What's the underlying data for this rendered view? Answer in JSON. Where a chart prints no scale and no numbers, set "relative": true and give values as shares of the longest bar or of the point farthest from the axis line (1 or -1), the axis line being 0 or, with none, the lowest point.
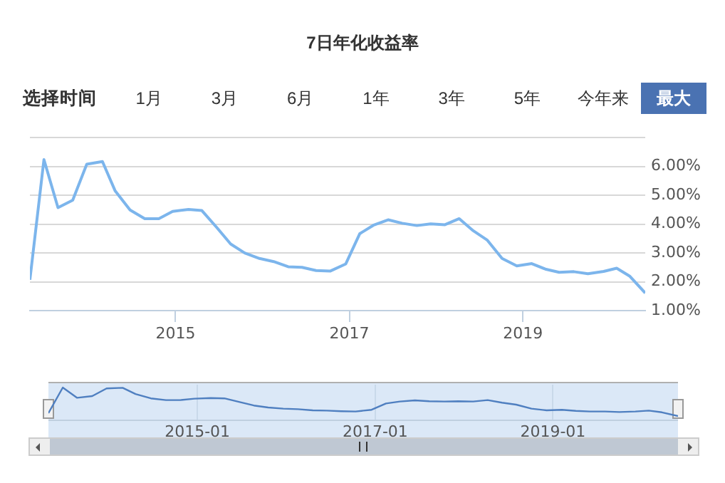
{
  "chart_data": [
    {
      "type": "line",
      "title": "7日年化收益率",
      "annotations": [
        "选择时间",
        "1月",
        "3月",
        "6月",
        "1年",
        "3年",
        "5年",
        "今年来",
        "最大"
      ],
      "x": [
        "2013-04-29",
        "2013-06-27",
        "2013-08-25",
        "2013-10-26",
        "2013-12-24",
        "2014-02-28",
        "2014-04-22",
        "2014-06-24",
        "2014-08-25",
        "2014-10-23",
        "2014-12-20",
        "2015-02-25",
        "2015-04-22",
        "2015-06-24",
        "2015-08-21",
        "2015-10-19",
        "2015-12-20",
        "2016-02-18",
        "2016-04-19",
        "2016-06-16",
        "2016-08-14",
        "2016-10-12",
        "2016-12-17",
        "2017-02-14",
        "2017-04-12",
        "2017-06-13",
        "2017-08-11",
        "2017-10-12",
        "2017-12-09",
        "2018-02-07",
        "2018-04-08",
        "2018-06-06",
        "2018-08-03",
        "2018-10-05",
        "2018-12-06",
        "2019-02-07",
        "2019-04-05",
        "2019-06-02",
        "2019-08-03",
        "2019-10-01",
        "2019-12-06",
        "2020-01-30",
        "2020-03-24",
        "2020-05-29"
      ],
      "series": [
        {
          "color": "#7cb5ec",
          "values": [
            2.07,
            6.24,
            4.57,
            4.83,
            6.08,
            6.17,
            5.16,
            4.49,
            4.19,
            4.19,
            4.44,
            4.51,
            4.47,
            3.88,
            3.31,
            3.0,
            2.81,
            2.7,
            2.52,
            2.5,
            2.39,
            2.37,
            2.62,
            3.67,
            3.96,
            4.15,
            4.03,
            3.95,
            4.01,
            3.98,
            4.19,
            3.77,
            3.45,
            2.81,
            2.55,
            2.63,
            2.44,
            2.33,
            2.35,
            2.28,
            2.36,
            2.47,
            2.2,
            1.61
          ]
        }
      ],
      "xlim": [
        "2013-04-29",
        "2020-05-29"
      ],
      "xticks": [
        {
          "value": "2015-01-01",
          "label": "2015"
        },
        {
          "value": "2017-01-01",
          "label": "2017"
        },
        {
          "value": "2019-01-01",
          "label": "2019"
        }
      ],
      "ylim": [
        1,
        7
      ],
      "yticks": [
        {
          "value": 1,
          "label": "1.00%"
        },
        {
          "value": 2,
          "label": "2.00%"
        },
        {
          "value": 3,
          "label": "3.00%"
        },
        {
          "value": 4,
          "label": "4.00%"
        },
        {
          "value": 5,
          "label": "5.00%"
        },
        {
          "value": 6,
          "label": "6.00%"
        },
        {
          "value": 7,
          "label": null
        }
      ],
      "grid": "y"
    },
    {
      "type": "line",
      "relative": true,
      "x": [
        "2013-04-29",
        "2013-06-27",
        "2013-08-25",
        "2013-10-26",
        "2013-12-24",
        "2014-02-28",
        "2014-04-22",
        "2014-06-24",
        "2014-08-25",
        "2014-10-23",
        "2014-12-20",
        "2015-02-25",
        "2015-04-22",
        "2015-06-24",
        "2015-08-21",
        "2015-10-19",
        "2015-12-20",
        "2016-02-18",
        "2016-04-19",
        "2016-06-16",
        "2016-08-14",
        "2016-10-12",
        "2016-12-17",
        "2017-02-14",
        "2017-04-12",
        "2017-06-13",
        "2017-08-11",
        "2017-10-12",
        "2017-12-09",
        "2018-02-07",
        "2018-04-08",
        "2018-06-06",
        "2018-08-03",
        "2018-10-05",
        "2018-12-06",
        "2019-02-07",
        "2019-04-05",
        "2019-06-02",
        "2019-08-03",
        "2019-10-01",
        "2019-12-06",
        "2020-01-30",
        "2020-03-24",
        "2020-05-29"
      ],
      "series": [
        {
          "color": "#4f7fc0",
          "values": [
            0.1,
            1,
            0.64,
            0.7,
            0.97,
            0.99,
            0.77,
            0.62,
            0.56,
            0.56,
            0.61,
            0.63,
            0.62,
            0.49,
            0.37,
            0.3,
            0.26,
            0.24,
            0.2,
            0.19,
            0.17,
            0.16,
            0.22,
            0.44,
            0.51,
            0.55,
            0.52,
            0.51,
            0.52,
            0.51,
            0.56,
            0.47,
            0.4,
            0.26,
            0.2,
            0.22,
            0.18,
            0.16,
            0.16,
            0.14,
            0.16,
            0.19,
            0.13,
            0
          ]
        }
      ],
      "xlim": [
        "2013-04-29",
        "2020-05-29"
      ],
      "xticks": [
        {
          "value": "2015-01-01",
          "label": "2015-01"
        },
        {
          "value": "2017-01-01",
          "label": "2017-01"
        },
        {
          "value": "2019-01-01",
          "label": "2019-01"
        }
      ],
      "grid": "x",
      "tick_labels": "x"
    }
  ]
}
